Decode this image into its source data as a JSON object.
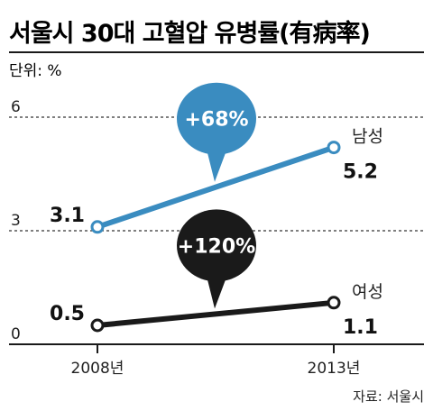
{
  "chart_data": {
    "type": "line",
    "title": "서울시 30대 고혈압 유병률(有病率)",
    "unit_label": "단위: %",
    "x": [
      "2008년",
      "2013년"
    ],
    "yticks": [
      "6",
      "3",
      "0"
    ],
    "ylim": [
      0,
      6
    ],
    "grid": "dashed horizontal at 6 and 3",
    "series": [
      {
        "name": "남성",
        "values": [
          3.1,
          5.2
        ],
        "labels": [
          "3.1",
          "5.2"
        ],
        "color": "#3a8cc0",
        "change": "+68%",
        "bubble_color": "#3a8cc0"
      },
      {
        "name": "여성",
        "values": [
          0.5,
          1.1
        ],
        "labels": [
          "0.5",
          "1.1"
        ],
        "color": "#1a1a1a",
        "change": "+120%",
        "bubble_color": "#1a1a1a"
      }
    ],
    "source": "자료: 서울시"
  }
}
